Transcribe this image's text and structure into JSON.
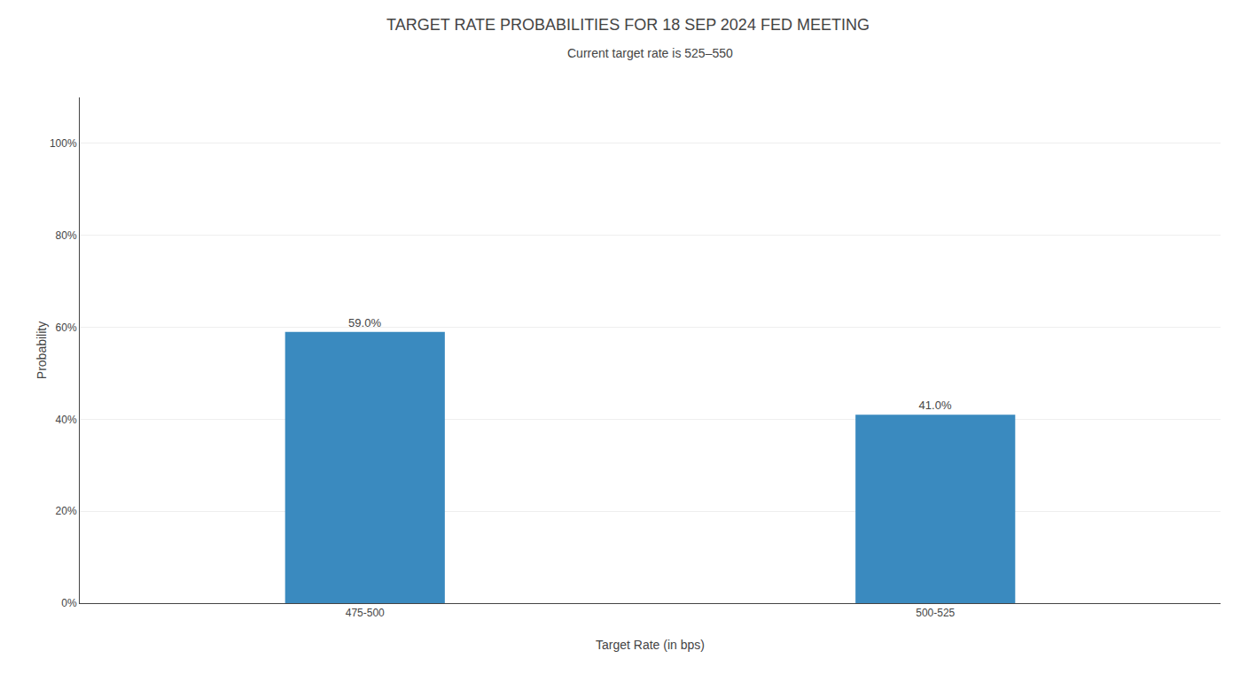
{
  "chart_data": {
    "type": "bar",
    "title": "TARGET RATE PROBABILITIES FOR 18 SEP 2024 FED MEETING",
    "subtitle": "Current target rate is 525–550",
    "categories": [
      "475-500",
      "500-525"
    ],
    "values": [
      59.0,
      41.0
    ],
    "value_labels": [
      "59.0%",
      "41.0%"
    ],
    "data_labels": true,
    "color": "#3a8abf",
    "xlabel": "Target Rate (in bps)",
    "ylabel": "Probability",
    "ylim": [
      0,
      110
    ],
    "yticks": [
      {
        "value": 0,
        "label": "0%"
      },
      {
        "value": 20,
        "label": "20%"
      },
      {
        "value": 40,
        "label": "40%"
      },
      {
        "value": 60,
        "label": "60%"
      },
      {
        "value": 80,
        "label": "80%"
      },
      {
        "value": 100,
        "label": "100%"
      }
    ],
    "grid": true
  }
}
